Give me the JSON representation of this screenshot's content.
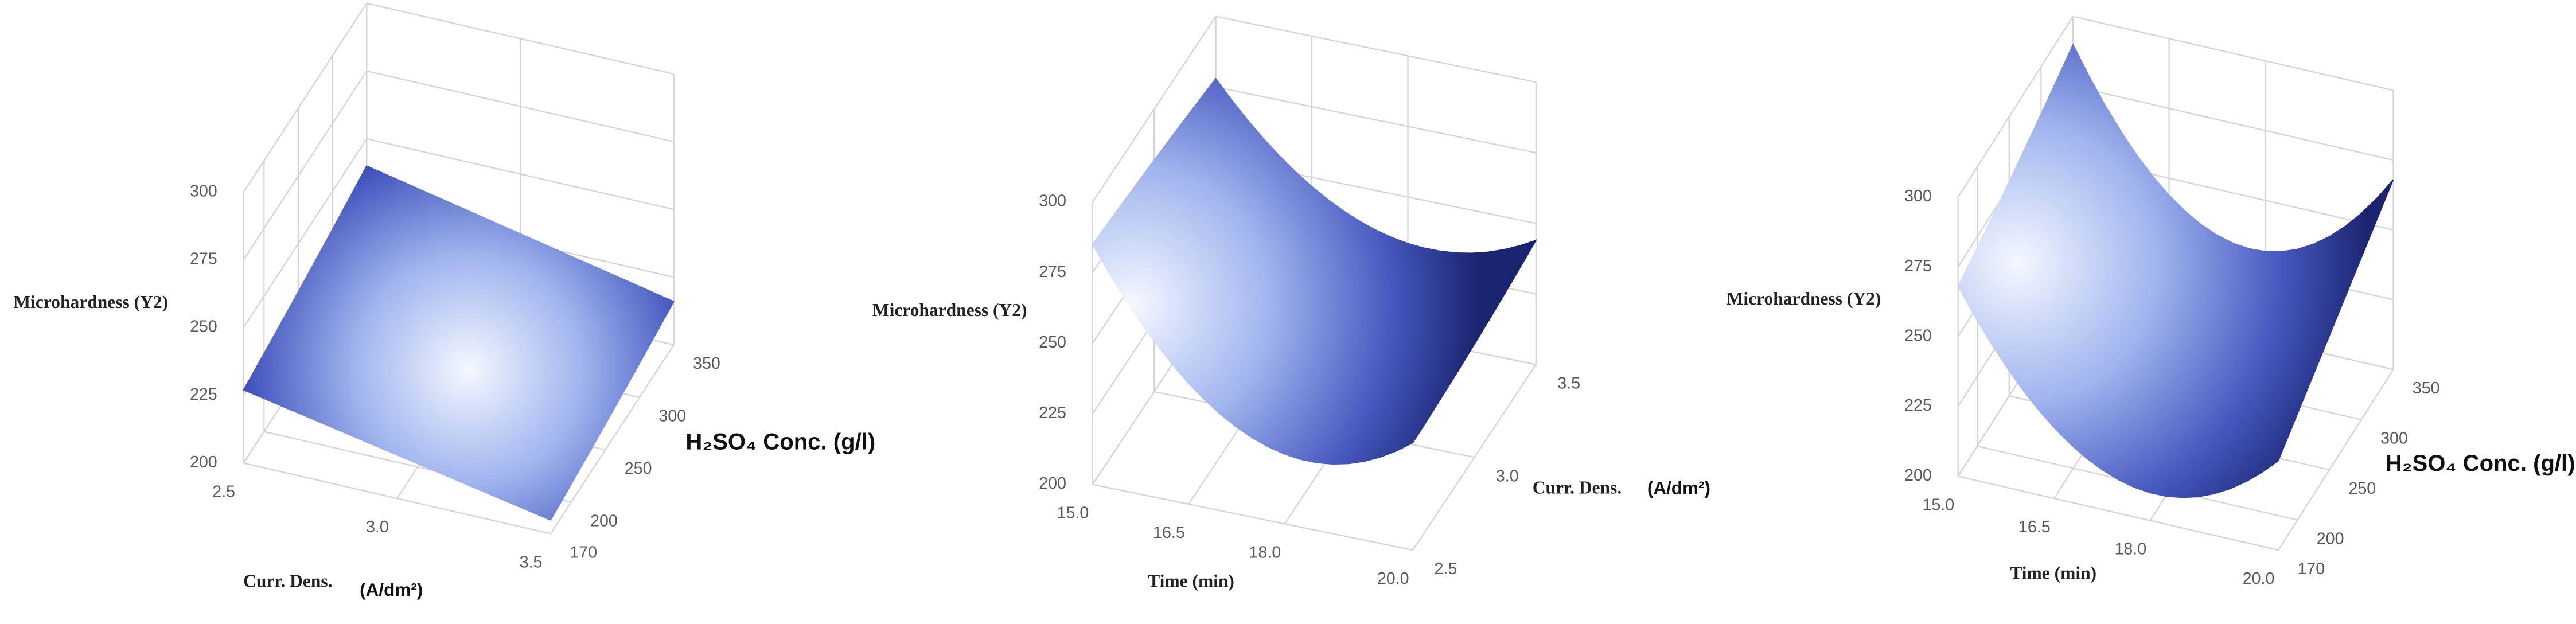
{
  "chart_data": [
    {
      "type": "surface",
      "zlabel": "Microhardness (Y2)",
      "xlabel": "Curr. Dens.",
      "xlabel_unit": "(A/dm²)",
      "ylabel": "H₂SO₄ Conc. (g/l)",
      "x": [
        2.5,
        3,
        3.5
      ],
      "y": [
        170,
        260,
        350
      ],
      "z": [
        [
          227,
          216,
          205
        ],
        [
          233,
          222,
          210
        ],
        [
          240,
          228,
          216
        ]
      ],
      "xlim": [
        2.5,
        3.5
      ],
      "xticks": [
        2.5,
        {
          "value": 3,
          "label": "3.0"
        },
        3.5
      ],
      "ylim": [
        170,
        350
      ],
      "yticks": [
        170,
        200,
        250,
        300,
        350
      ],
      "zlim": [
        200,
        300
      ],
      "zticks": [
        200,
        225,
        250,
        275,
        300
      ]
    },
    {
      "type": "surface",
      "zlabel": "Microhardness (Y2)",
      "xlabel": "Time (min)",
      "ylabel": "Curr. Dens.",
      "ylabel_unit": "(A/dm²)",
      "x": [
        15,
        17.5,
        20
      ],
      "y": [
        2.5,
        3,
        3.5
      ],
      "z": [
        [
          285,
          228,
          238
        ],
        [
          282,
          232,
          240
        ],
        [
          278,
          236,
          244
        ]
      ],
      "xlim": [
        15,
        20
      ],
      "xticks": [
        {
          "value": 15,
          "label": "15.0"
        },
        16.5,
        {
          "value": 18,
          "label": "18.0"
        },
        {
          "value": 20,
          "label": "20.0"
        }
      ],
      "ylim": [
        2.5,
        3.5
      ],
      "yticks": [
        2.5,
        {
          "value": 3,
          "label": "3.0"
        },
        3.5
      ],
      "zlim": [
        200,
        300
      ],
      "zticks": [
        200,
        225,
        250,
        275,
        300
      ]
    },
    {
      "type": "surface",
      "zlabel": "Microhardness (Y2)",
      "xlabel": "Time (min)",
      "ylabel": "H₂SO₄ Conc. (g/l)",
      "x": [
        15,
        17.5,
        20
      ],
      "y": [
        170,
        260,
        350
      ],
      "z": [
        [
          268,
          212,
          232
        ],
        [
          278,
          222,
          250
        ],
        [
          290,
          232,
          268
        ]
      ],
      "xlim": [
        15,
        20
      ],
      "xticks": [
        {
          "value": 15,
          "label": "15.0"
        },
        16.5,
        {
          "value": 18,
          "label": "18.0"
        },
        {
          "value": 20,
          "label": "20.0"
        }
      ],
      "ylim": [
        170,
        350
      ],
      "yticks": [
        170,
        200,
        250,
        300,
        350
      ],
      "zlim": [
        200,
        300
      ],
      "zticks": [
        200,
        225,
        250,
        275,
        300
      ]
    }
  ]
}
